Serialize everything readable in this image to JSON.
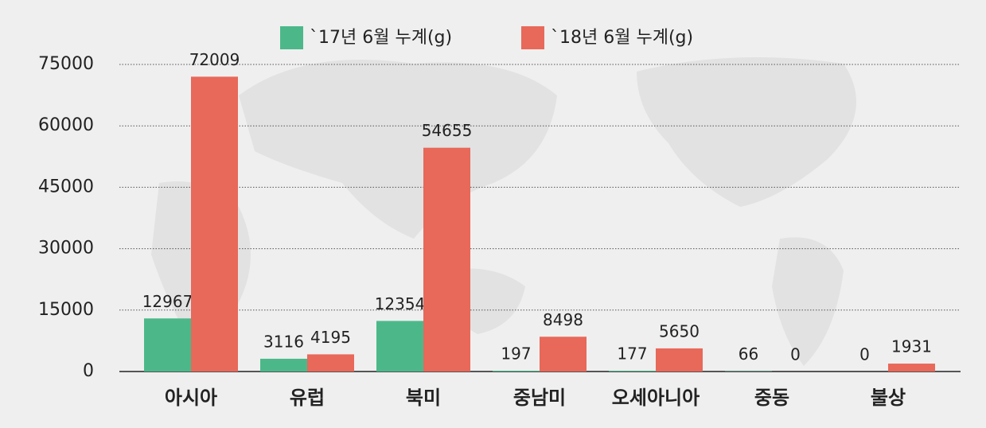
{
  "chart_data": {
    "type": "bar",
    "categories": [
      "아시아",
      "유럽",
      "북미",
      "중남미",
      "오세아니아",
      "중동",
      "불상"
    ],
    "series": [
      {
        "name": "`17년 6월 누계(g)",
        "color": "#4cb88a",
        "values": [
          12967,
          3116,
          12354,
          197,
          177,
          66,
          0
        ]
      },
      {
        "name": "`18년 6월 누계(g)",
        "color": "#e8685a",
        "values": [
          72009,
          4195,
          54655,
          8498,
          5650,
          0,
          1931
        ]
      }
    ],
    "ylim": [
      0,
      75000
    ],
    "yticks": [
      0,
      15000,
      30000,
      45000,
      60000,
      75000
    ],
    "grid": true
  }
}
